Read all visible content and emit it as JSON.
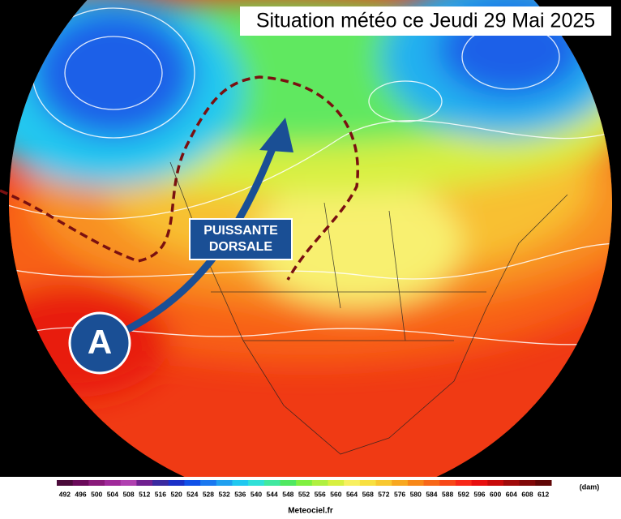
{
  "header": {
    "title": "Situation météo ce Jeudi 29 Mai 2025"
  },
  "annotations": {
    "ridge_label": [
      "PUISSANTE",
      "DORSALE"
    ],
    "anticyclone": "A"
  },
  "legend": {
    "unit": "(dam)",
    "values": [
      492,
      496,
      500,
      504,
      508,
      512,
      516,
      520,
      524,
      528,
      532,
      536,
      540,
      544,
      548,
      552,
      556,
      560,
      564,
      568,
      572,
      576,
      580,
      584,
      588,
      592,
      596,
      600,
      604,
      608,
      612
    ],
    "colors": [
      "#4a0a3a",
      "#6a0a5a",
      "#8a1a7a",
      "#a02a9a",
      "#b040b0",
      "#702090",
      "#3a2aa0",
      "#1a30c8",
      "#1050e8",
      "#1a78f0",
      "#20a0f0",
      "#20c8f0",
      "#30e0d8",
      "#40e8a0",
      "#50e860",
      "#80f040",
      "#b0f040",
      "#d8f040",
      "#f8f060",
      "#f8e040",
      "#f8c830",
      "#f8a820",
      "#f88818",
      "#f86818",
      "#f84818",
      "#f82818",
      "#e81010",
      "#c80a0a",
      "#a00a0a",
      "#800808",
      "#600606"
    ]
  },
  "footer": {
    "credit": "Meteociel.fr"
  }
}
